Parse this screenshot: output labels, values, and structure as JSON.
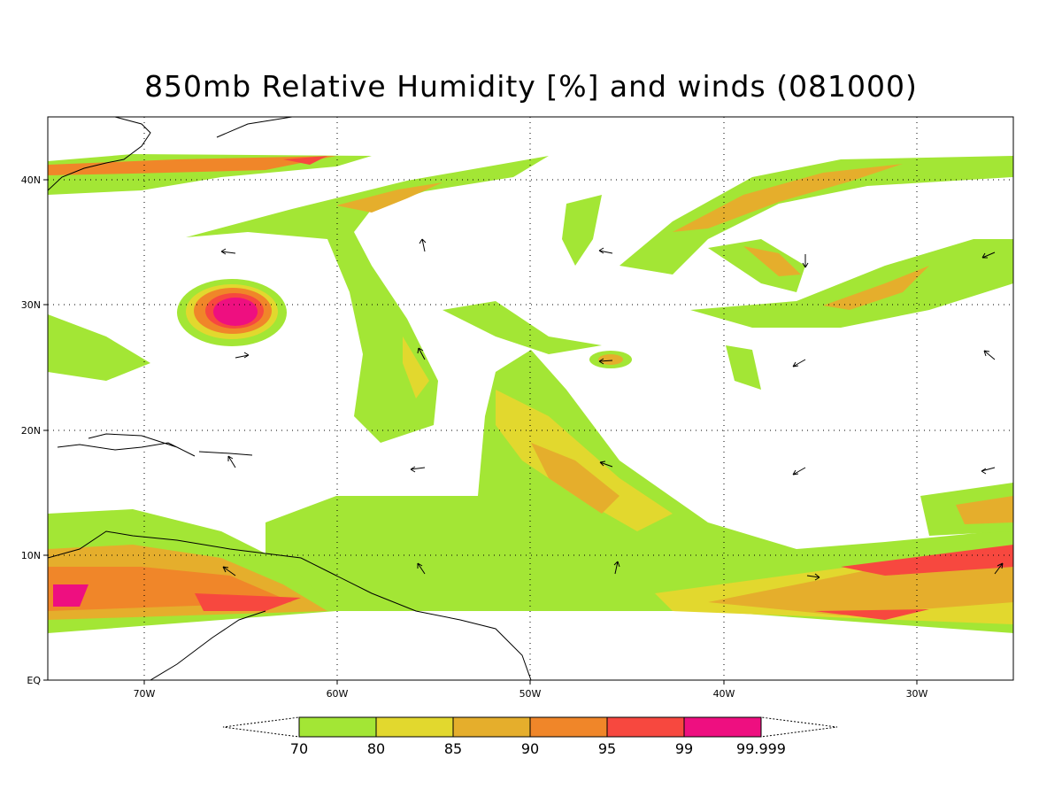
{
  "title": "850mb Relative Humidity [%] and winds (081000)",
  "lat_labels": [
    "40N",
    "30N",
    "20N",
    "10N",
    "EQ"
  ],
  "lon_labels": [
    "70W",
    "60W",
    "50W",
    "40W",
    "30W"
  ],
  "colorbar": {
    "bins": [
      {
        "label": "70",
        "color": "#a3e635"
      },
      {
        "label": "80",
        "color": "#e2d82e"
      },
      {
        "label": "85",
        "color": "#e5ae2c"
      },
      {
        "label": "90",
        "color": "#f08629"
      },
      {
        "label": "95",
        "color": "#f7483f"
      },
      {
        "label": "99",
        "color": "#ee0f80"
      }
    ],
    "end_label": "99.999"
  },
  "map": {
    "lon_range": [
      "75W",
      "25W"
    ],
    "lat_range": [
      "EQ",
      "45N"
    ],
    "grid": "dotted every 10 degrees"
  }
}
